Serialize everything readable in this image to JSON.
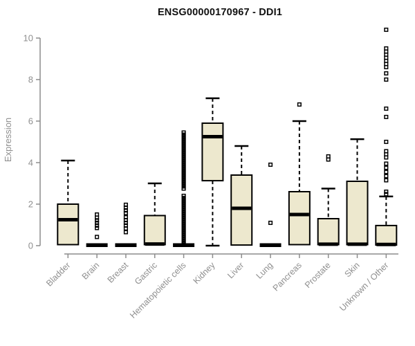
{
  "title": "ENSG00000170967 - DDI1",
  "colors": {
    "box_fill": "#ede8ce",
    "box_stroke": "#000000",
    "median": "#000000",
    "whisker": "#000000",
    "outlier": "#000000",
    "axis_line": "#8c8c8c",
    "axis_text": "#8f8f8f",
    "title_text": "#111111"
  },
  "chart_data": {
    "type": "boxplot",
    "title": "ENSG00000170967 - DDI1",
    "xlabel": "",
    "ylabel": "Expression",
    "ylim": [
      0,
      10.5
    ],
    "yticks": [
      0,
      2,
      4,
      6,
      8,
      10
    ],
    "grid": false,
    "legend": "none",
    "categories": [
      "Bladder",
      "Brain",
      "Breast",
      "Gastric",
      "Hematopoietic cells",
      "Kidney",
      "Liver",
      "Lung",
      "Pancreas",
      "Prostate",
      "Skin",
      "Unknown / Other"
    ],
    "series": [
      {
        "label": "Bladder",
        "collapsed": false,
        "low": 0.05,
        "q1": 0.05,
        "median": 1.25,
        "q3": 2.0,
        "high": 4.1,
        "outliers": []
      },
      {
        "label": "Brain",
        "collapsed": true,
        "low": 0.03,
        "q1": 0.03,
        "median": 0.05,
        "q3": 0.08,
        "high": 0.08,
        "outliers": [
          1.5,
          1.35,
          1.22,
          1.1,
          0.97,
          0.85,
          0.42
        ]
      },
      {
        "label": "Breast",
        "collapsed": true,
        "low": 0.03,
        "q1": 0.03,
        "median": 0.05,
        "q3": 0.08,
        "high": 0.08,
        "outliers": [
          1.97,
          1.83,
          1.7,
          1.57,
          1.37,
          1.23,
          1.1,
          0.97,
          0.83,
          0.65
        ]
      },
      {
        "label": "Gastric",
        "collapsed": false,
        "low": 0.05,
        "q1": 0.05,
        "median": 0.08,
        "q3": 1.45,
        "high": 3.0,
        "outliers": []
      },
      {
        "label": "Hematopoietic cells",
        "collapsed": true,
        "low": 0.03,
        "q1": 0.03,
        "median": 0.05,
        "q3": 0.08,
        "high": 0.08,
        "outliers": [
          0.1,
          0.2,
          0.3,
          0.4,
          0.5,
          0.6,
          0.7,
          0.8,
          0.9,
          1.0,
          1.1,
          1.2,
          1.3,
          1.4,
          1.5,
          1.6,
          1.7,
          1.8,
          1.9,
          2.0,
          2.1,
          2.2,
          2.3,
          2.4,
          2.75,
          2.85,
          2.95,
          3.05,
          3.15,
          3.25,
          3.35,
          3.45,
          3.55,
          3.65,
          3.75,
          3.85,
          3.95,
          4.05,
          4.15,
          4.25,
          4.35,
          4.45,
          4.55,
          4.65,
          4.75,
          4.85,
          4.95,
          5.05,
          5.15,
          5.25,
          5.35,
          5.45
        ]
      },
      {
        "label": "Kidney",
        "collapsed": false,
        "low": 0.0,
        "q1": 3.13,
        "median": 5.25,
        "q3": 5.9,
        "high": 7.1,
        "outliers": []
      },
      {
        "label": "Liver",
        "collapsed": false,
        "low": 0.03,
        "q1": 0.03,
        "median": 1.8,
        "q3": 3.4,
        "high": 4.8,
        "outliers": []
      },
      {
        "label": "Lung",
        "collapsed": true,
        "low": 0.03,
        "q1": 0.03,
        "median": 0.05,
        "q3": 0.08,
        "high": 0.08,
        "outliers": [
          3.9,
          1.1
        ]
      },
      {
        "label": "Pancreas",
        "collapsed": false,
        "low": 0.05,
        "q1": 0.05,
        "median": 1.5,
        "q3": 2.6,
        "high": 6.0,
        "outliers": [
          6.8
        ]
      },
      {
        "label": "Prostate",
        "collapsed": false,
        "low": 0.05,
        "q1": 0.05,
        "median": 0.07,
        "q3": 1.3,
        "high": 2.75,
        "outliers": [
          4.3,
          4.15
        ]
      },
      {
        "label": "Skin",
        "collapsed": false,
        "low": 0.05,
        "q1": 0.05,
        "median": 0.07,
        "q3": 3.1,
        "high": 5.13,
        "outliers": []
      },
      {
        "label": "Unknown / Other",
        "collapsed": false,
        "low": 0.03,
        "q1": 0.03,
        "median": 0.06,
        "q3": 0.97,
        "high": 2.37,
        "outliers": [
          10.4,
          9.5,
          9.35,
          9.2,
          9.05,
          8.9,
          8.75,
          8.6,
          8.3,
          8.0,
          6.6,
          6.2,
          5.0,
          4.55,
          4.4,
          4.25,
          3.95,
          3.75,
          3.55,
          3.35,
          3.15,
          2.6,
          2.48
        ]
      }
    ]
  }
}
